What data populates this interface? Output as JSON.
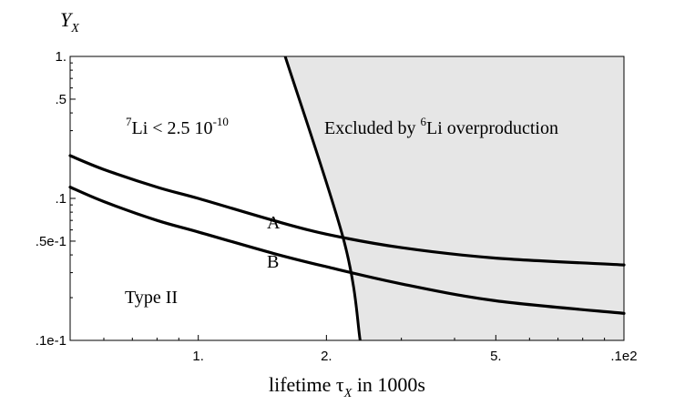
{
  "chart_data": {
    "type": "line",
    "ylabel": "Y",
    "ylabel_sub": "X",
    "xlabel_prefix": "lifetime ",
    "xlabel_tau": "τ",
    "xlabel_sub": "X",
    "xlabel_suffix": " in 1000s",
    "x_scale": "log",
    "y_scale": "log",
    "xlim": [
      0.5,
      10
    ],
    "ylim": [
      0.01,
      1
    ],
    "grid": false,
    "xticks": [
      {
        "value": 1,
        "label": "1."
      },
      {
        "value": 2,
        "label": "2."
      },
      {
        "value": 5,
        "label": "5."
      },
      {
        "value": 10,
        "label": ".1e2"
      }
    ],
    "yticks": [
      {
        "value": 1,
        "label": "1."
      },
      {
        "value": 0.5,
        "label": ".5"
      },
      {
        "value": 0.1,
        "label": ".1"
      },
      {
        "value": 0.05,
        "label": ".5e-1"
      },
      {
        "value": 0.01,
        "label": ".1e-1"
      }
    ],
    "x_minor_ticks": [
      0.6,
      0.7,
      0.8,
      0.9,
      3,
      4,
      6,
      7,
      8,
      9
    ],
    "y_minor_ticks": [
      0.02,
      0.03,
      0.04,
      0.06,
      0.07,
      0.08,
      0.09,
      0.2,
      0.3,
      0.4,
      0.6,
      0.7,
      0.8,
      0.9
    ],
    "excluded_region": {
      "label_prefix": "Excluded by ",
      "label_sup": "6",
      "label_suffix": "Li overproduction",
      "fill": "#e6e6e6",
      "boundary": [
        {
          "x": 1.6,
          "y": 1.0
        },
        {
          "x": 2.2,
          "y": 0.05
        },
        {
          "x": 2.4,
          "y": 0.01
        }
      ]
    },
    "series": [
      {
        "name": "A",
        "color": "#000000",
        "points": [
          {
            "x": 0.5,
            "y": 0.2
          },
          {
            "x": 0.6,
            "y": 0.16
          },
          {
            "x": 0.8,
            "y": 0.12
          },
          {
            "x": 1.0,
            "y": 0.1
          },
          {
            "x": 1.5,
            "y": 0.07
          },
          {
            "x": 2.0,
            "y": 0.056
          },
          {
            "x": 3.0,
            "y": 0.045
          },
          {
            "x": 5.0,
            "y": 0.038
          },
          {
            "x": 10.0,
            "y": 0.034
          }
        ]
      },
      {
        "name": "B",
        "color": "#000000",
        "points": [
          {
            "x": 0.5,
            "y": 0.12
          },
          {
            "x": 0.6,
            "y": 0.095
          },
          {
            "x": 0.8,
            "y": 0.07
          },
          {
            "x": 1.0,
            "y": 0.058
          },
          {
            "x": 1.5,
            "y": 0.041
          },
          {
            "x": 2.0,
            "y": 0.033
          },
          {
            "x": 3.0,
            "y": 0.025
          },
          {
            "x": 5.0,
            "y": 0.019
          },
          {
            "x": 10.0,
            "y": 0.0155
          }
        ]
      }
    ],
    "annotations": {
      "li7_sup": "7",
      "li7_text": "Li < 2.5 10",
      "li7_exp": "-10",
      "type_label": "Type II"
    }
  }
}
